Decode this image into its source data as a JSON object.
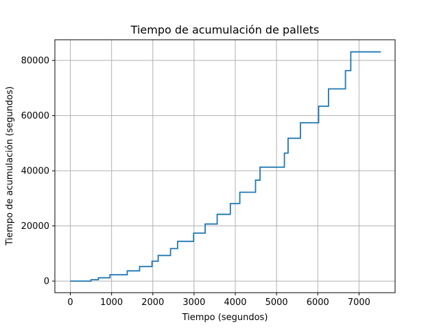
{
  "chart_data": {
    "type": "line",
    "step": true,
    "title": "Tiempo de acumulación de pallets",
    "xlabel": "Tiempo (segundos)",
    "ylabel": "Tiempo de acumulación (segundos)",
    "xlim": [
      -375,
      7875
    ],
    "ylim": [
      -4200,
      87500
    ],
    "xticks": [
      0,
      1000,
      2000,
      3000,
      4000,
      5000,
      6000,
      7000
    ],
    "yticks": [
      0,
      20000,
      40000,
      60000,
      80000
    ],
    "xtick_labels": [
      "0",
      "1000",
      "2000",
      "3000",
      "4000",
      "5000",
      "6000",
      "7000"
    ],
    "ytick_labels": [
      "0",
      "20000",
      "40000",
      "60000",
      "80000"
    ],
    "grid": true,
    "line_color": "#1f77b4",
    "series": [
      {
        "x": [
          0,
          500,
          680,
          960,
          1380,
          1680,
          1980,
          2130,
          2430,
          2600,
          2990,
          3270,
          3560,
          3880,
          4110,
          4490,
          4600,
          5190,
          5280,
          5580,
          6020,
          6260,
          6670,
          6800,
          7530
        ],
        "y": [
          0,
          500,
          1200,
          2300,
          3700,
          5300,
          7200,
          9300,
          11800,
          14400,
          17400,
          20700,
          24200,
          28100,
          32200,
          36600,
          41300,
          46400,
          51800,
          57400,
          63400,
          69700,
          76300,
          83100,
          83100
        ]
      }
    ]
  }
}
